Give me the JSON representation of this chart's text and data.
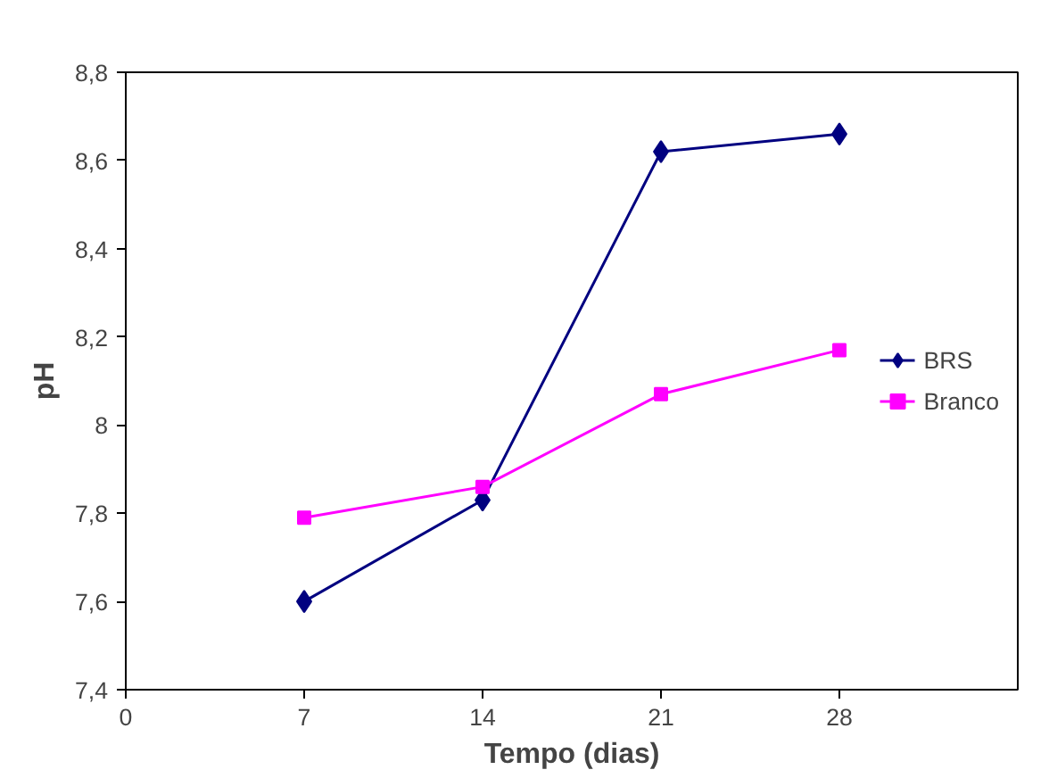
{
  "chart_data": {
    "type": "line",
    "xlabel": "Tempo (dias)",
    "ylabel": "pH",
    "x": [
      7,
      14,
      21,
      28
    ],
    "series": [
      {
        "name": "BRS",
        "color": "#000080",
        "marker": "diamond",
        "values": [
          7.6,
          7.83,
          8.62,
          8.66
        ]
      },
      {
        "name": "Branco",
        "color": "#ff00ff",
        "marker": "square",
        "values": [
          7.79,
          7.86,
          8.07,
          8.17
        ]
      }
    ],
    "xlim": [
      0,
      35
    ],
    "xticks": [
      0,
      7,
      14,
      21,
      28
    ],
    "ylim": [
      7.4,
      8.8
    ],
    "yticks": [
      {
        "value": 7.4,
        "label": "7,4"
      },
      {
        "value": 7.6,
        "label": "7,6"
      },
      {
        "value": 7.8,
        "label": "7,8"
      },
      {
        "value": 8,
        "label": "8"
      },
      {
        "value": 8.2,
        "label": "8,2"
      },
      {
        "value": 8.4,
        "label": "8,4"
      },
      {
        "value": 8.6,
        "label": "8,6"
      },
      {
        "value": 8.8,
        "label": "8,8"
      }
    ],
    "grid": false,
    "legend": "right"
  }
}
